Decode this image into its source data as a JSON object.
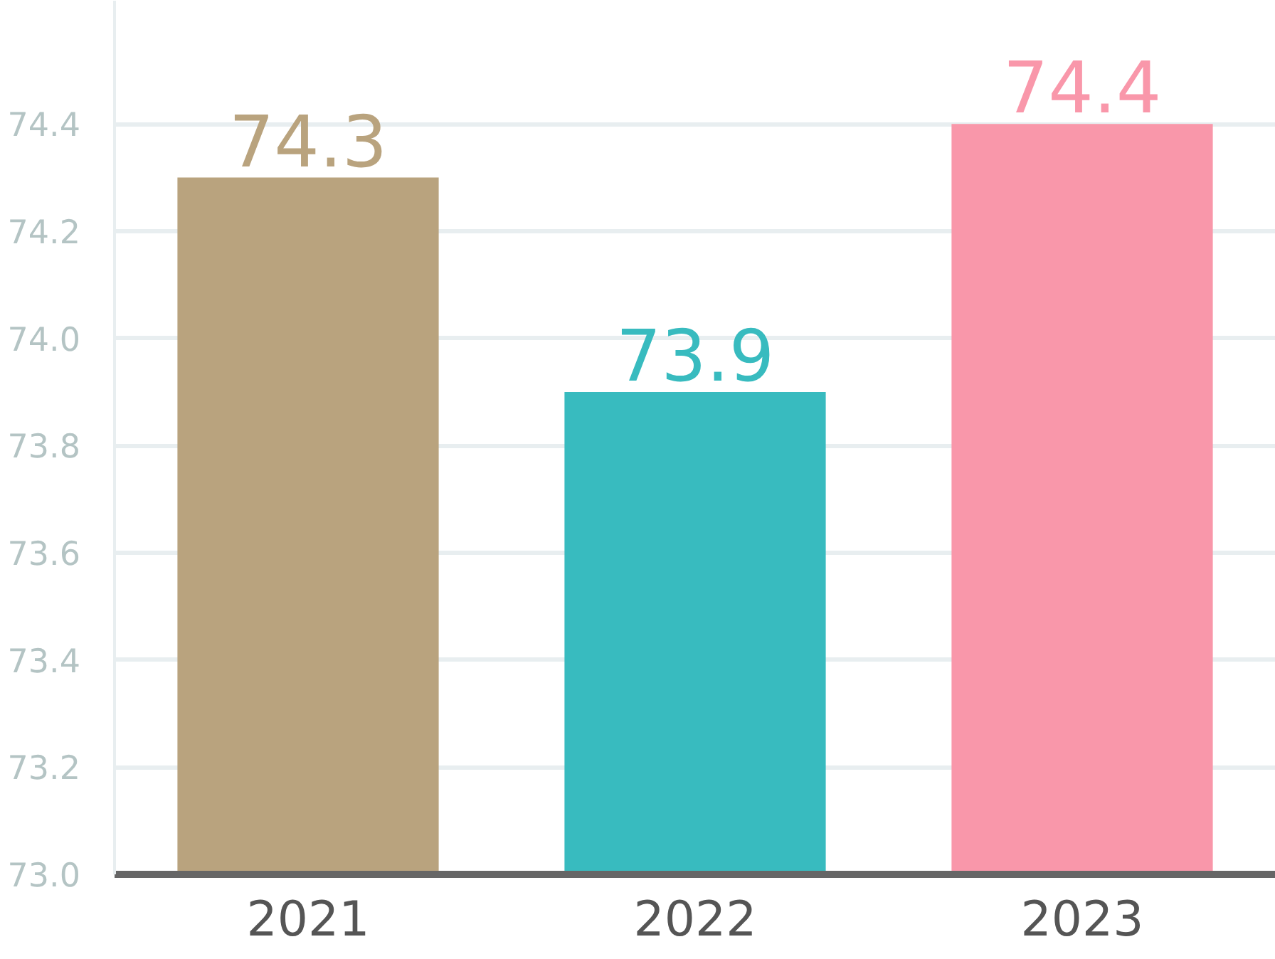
{
  "chart_data": {
    "type": "bar",
    "categories": [
      "2021",
      "2022",
      "2023"
    ],
    "values": [
      74.3,
      73.9,
      74.4
    ],
    "colors": [
      "#b9a37e",
      "#38bbbf",
      "#f997aa"
    ],
    "ylim": [
      73.0,
      74.63
    ],
    "yticks": [
      {
        "value": 73.0,
        "label": "73.0"
      },
      {
        "value": 73.2,
        "label": "73.2"
      },
      {
        "value": 73.4,
        "label": "73.4"
      },
      {
        "value": 73.6,
        "label": "73.6"
      },
      {
        "value": 73.8,
        "label": "73.8"
      },
      {
        "value": 74.0,
        "label": "74.0"
      },
      {
        "value": 74.2,
        "label": "74.2"
      },
      {
        "value": 74.4,
        "label": "74.4"
      }
    ],
    "grid": "y",
    "data_labels": true
  }
}
